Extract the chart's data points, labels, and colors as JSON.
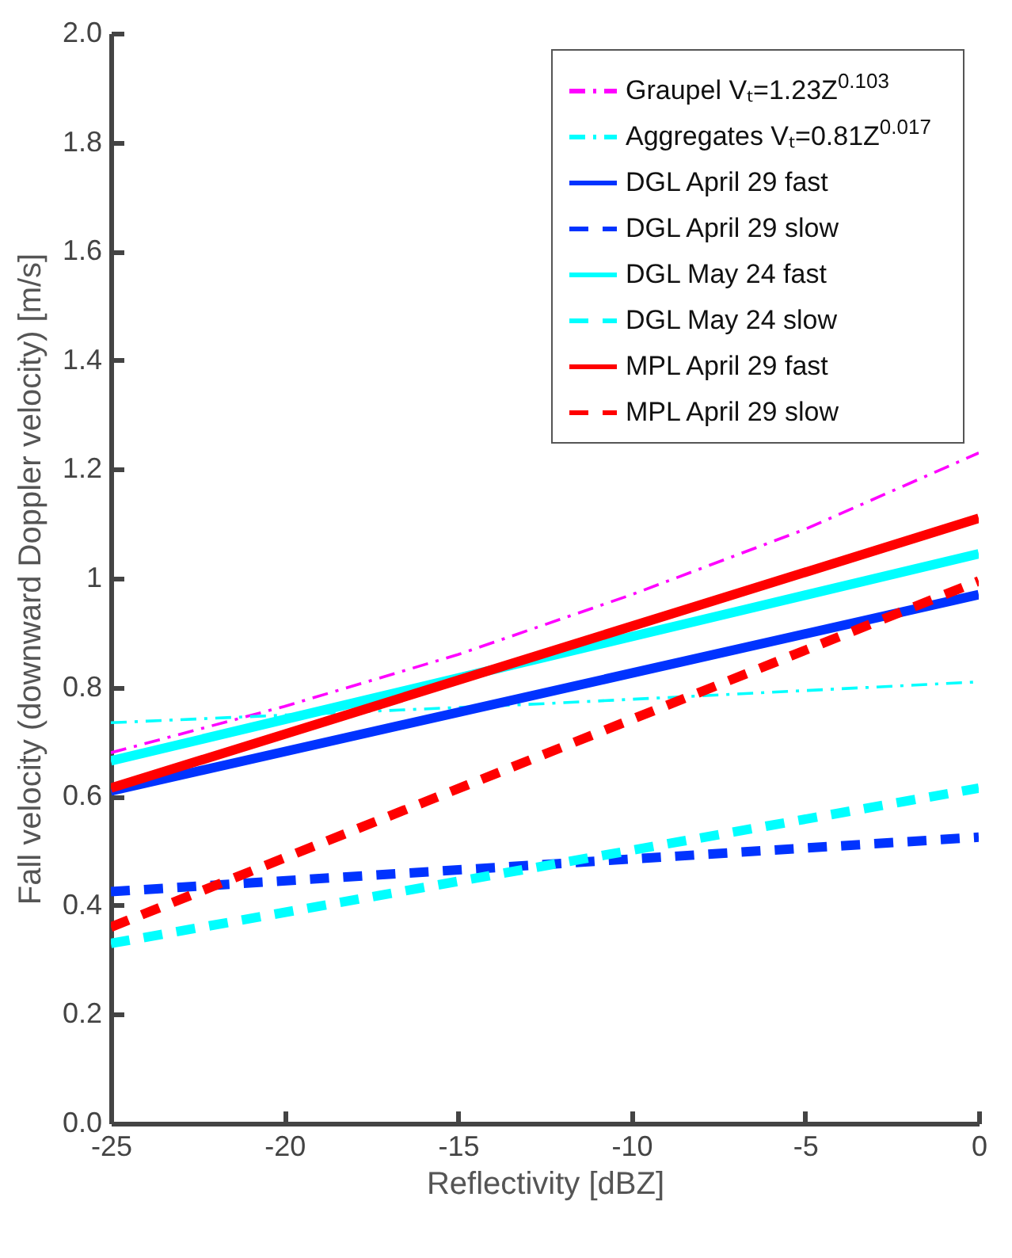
{
  "chart_data": {
    "type": "line",
    "xlabel": "Reflectivity [dBZ]",
    "ylabel": "Fall velocity (downward Doppler velocity) [m/s]",
    "xlim": [
      -25,
      0
    ],
    "xticks": [
      -25,
      -20,
      -15,
      -10,
      -5,
      0
    ],
    "ylim": [
      0,
      2
    ],
    "yticks": [
      {
        "value": 0,
        "label": "0.0"
      },
      0.2,
      0.4,
      0.6,
      0.8,
      1,
      1.2,
      1.4,
      1.6,
      1.8,
      {
        "value": 2,
        "label": "2.0"
      }
    ],
    "grid": false,
    "legend": "top right",
    "series": [
      {
        "name": "Graupel Vₜ=1.23Z$^{0.103}$",
        "color": "#ff00ff",
        "line_style": "dashdot",
        "x": [
          -25,
          -20,
          -15,
          -10,
          -5,
          0
        ],
        "values": [
          0.68,
          0.765,
          0.86,
          0.97,
          1.09,
          1.23
        ]
      },
      {
        "name": "Aggregates Vₜ=0.81Z$^{0.017}$",
        "color": "#00ffff",
        "line_style": "dashdot",
        "x": [
          -25,
          -12.5,
          0
        ],
        "values": [
          0.735,
          0.77,
          0.81
        ]
      },
      {
        "name": "DGL April 29 fast",
        "color": "#0033ff",
        "line_style": "solid",
        "x": [
          -25,
          0
        ],
        "values": [
          0.61,
          0.97
        ]
      },
      {
        "name": "DGL April 29 slow",
        "color": "#0033ff",
        "line_style": "dashed",
        "x": [
          -25,
          0
        ],
        "values": [
          0.425,
          0.525
        ]
      },
      {
        "name": "DGL May 24 fast",
        "color": "#00ffff",
        "line_style": "solid",
        "x": [
          -25,
          0
        ],
        "values": [
          0.665,
          1.045
        ]
      },
      {
        "name": "DGL May 24 slow",
        "color": "#00ffff",
        "line_style": "dashed",
        "x": [
          -25,
          0
        ],
        "values": [
          0.33,
          0.615
        ]
      },
      {
        "name": "MPL April 29 fast",
        "color": "#ff0000",
        "line_style": "solid",
        "x": [
          -25,
          0
        ],
        "values": [
          0.615,
          1.11
        ]
      },
      {
        "name": "MPL April 29 slow",
        "color": "#ff0000",
        "line_style": "dashed",
        "x": [
          -25,
          0
        ],
        "values": [
          0.36,
          0.995
        ]
      }
    ]
  }
}
